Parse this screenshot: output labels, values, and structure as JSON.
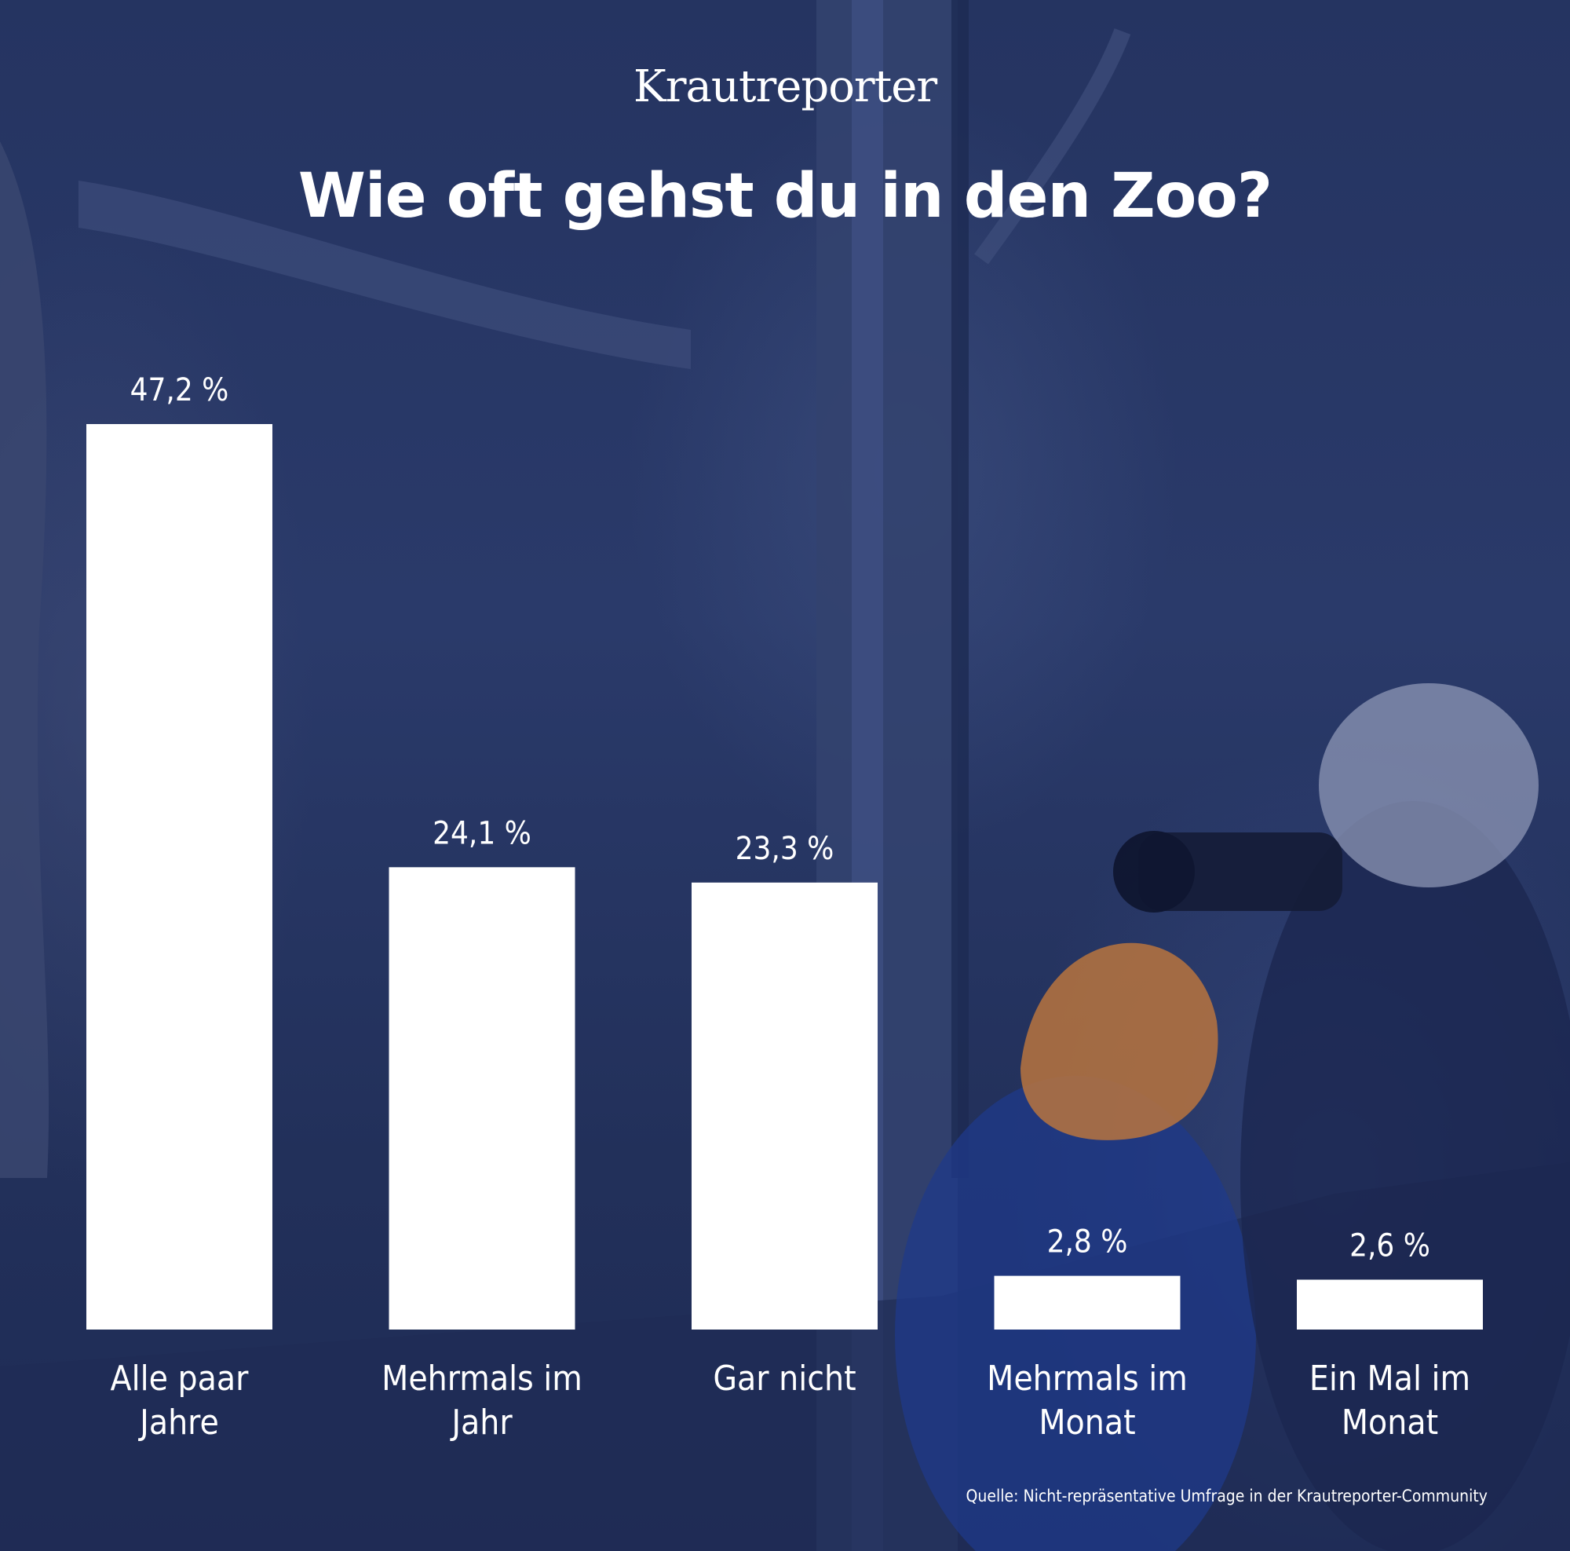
{
  "header": {
    "logo": "Krautreporter",
    "title": "Wie oft gehst du in den Zoo?"
  },
  "chart_data": {
    "type": "bar",
    "title": "Wie oft gehst du in den Zoo?",
    "categories": [
      [
        "Alle paar",
        "Jahre"
      ],
      [
        "Mehrmals im",
        "Jahr"
      ],
      [
        "Gar nicht"
      ],
      [
        "Mehrmals im",
        "Monat"
      ],
      [
        "Ein Mal im",
        "Monat"
      ]
    ],
    "values": [
      47.2,
      24.1,
      23.3,
      2.8,
      2.6
    ],
    "value_labels": [
      "47,2 %",
      "24,1 %",
      "23,3 %",
      "2,8 %",
      "2,6 %"
    ],
    "unit": "%",
    "ylim": [
      0,
      47.2
    ],
    "grid": false,
    "bar_color": "#ffffff",
    "text_color": "#ffffff"
  },
  "footer": {
    "source": "Quelle: Nicht-repräsentative Umfrage in der Krautreporter-Community"
  },
  "colors": {
    "background": "#26355f",
    "foreground": "#ffffff"
  }
}
